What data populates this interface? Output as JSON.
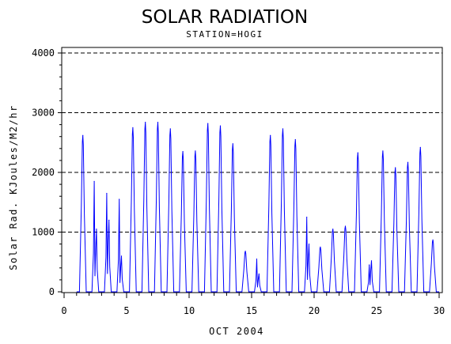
{
  "chart_data": {
    "type": "line",
    "title": "SOLAR RADIATION",
    "subtitle": "STATION=HOGI",
    "xlabel": "OCT 2004",
    "ylabel": "Solar Rad. KJoules/M2/hr",
    "xlim": [
      0,
      30
    ],
    "ylim": [
      0,
      4000
    ],
    "xticks": [
      0,
      5,
      10,
      15,
      20,
      25,
      30
    ],
    "yticks": [
      0,
      1000,
      2000,
      3000,
      4000
    ],
    "grid": "horizontal dashed at y tick values",
    "series": [
      {
        "color": "#0000ff",
        "daily_peaks": [
          {
            "day": 1.5,
            "peaks": [
              2620
            ]
          },
          {
            "day": 2.5,
            "peaks": [
              1850,
              1050
            ]
          },
          {
            "day": 3.5,
            "peaks": [
              1650,
              1200
            ]
          },
          {
            "day": 4.5,
            "peaks": [
              1550,
              600
            ]
          },
          {
            "day": 5.5,
            "peaks": [
              2750
            ]
          },
          {
            "day": 6.5,
            "peaks": [
              2840
            ]
          },
          {
            "day": 7.5,
            "peaks": [
              2840
            ]
          },
          {
            "day": 8.5,
            "peaks": [
              2730
            ]
          },
          {
            "day": 9.5,
            "peaks": [
              2350
            ]
          },
          {
            "day": 10.5,
            "peaks": [
              2360
            ]
          },
          {
            "day": 11.5,
            "peaks": [
              2820
            ]
          },
          {
            "day": 12.5,
            "peaks": [
              2780
            ]
          },
          {
            "day": 13.5,
            "peaks": [
              2480
            ]
          },
          {
            "day": 14.5,
            "peaks": [
              680
            ]
          },
          {
            "day": 15.5,
            "peaks": [
              550,
              300
            ]
          },
          {
            "day": 16.5,
            "peaks": [
              2620
            ]
          },
          {
            "day": 17.5,
            "peaks": [
              2730
            ]
          },
          {
            "day": 18.5,
            "peaks": [
              2550
            ]
          },
          {
            "day": 19.5,
            "peaks": [
              1250,
              800
            ]
          },
          {
            "day": 20.5,
            "peaks": [
              750
            ]
          },
          {
            "day": 21.5,
            "peaks": [
              1050
            ]
          },
          {
            "day": 22.5,
            "peaks": [
              1100
            ]
          },
          {
            "day": 23.5,
            "peaks": [
              2330
            ]
          },
          {
            "day": 24.5,
            "peaks": [
              450,
              520
            ]
          },
          {
            "day": 25.5,
            "peaks": [
              2360
            ]
          },
          {
            "day": 26.5,
            "peaks": [
              2080
            ]
          },
          {
            "day": 27.5,
            "peaks": [
              2170
            ]
          },
          {
            "day": 28.5,
            "peaks": [
              2420
            ]
          },
          {
            "day": 29.5,
            "peaks": [
              870
            ]
          }
        ]
      }
    ]
  }
}
